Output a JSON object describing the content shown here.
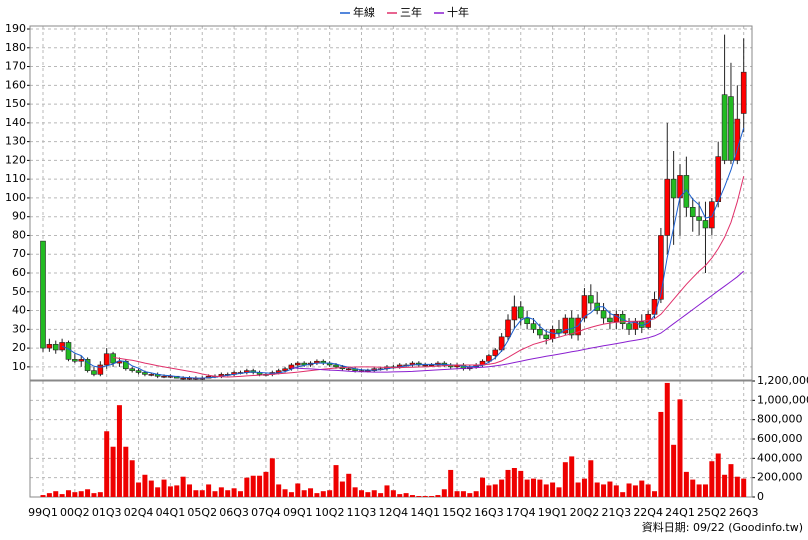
{
  "chart_data": {
    "type": "candlestick",
    "legend_position": "top",
    "note": "資料日期: 09/22 (Goodinfo.tw)",
    "categories": [
      "99Q1",
      null,
      null,
      null,
      null,
      "00Q2",
      null,
      null,
      null,
      null,
      "01Q3",
      null,
      null,
      null,
      null,
      "02Q4",
      null,
      null,
      null,
      null,
      "04Q1",
      null,
      null,
      null,
      null,
      "05Q2",
      null,
      null,
      null,
      null,
      "06Q3",
      null,
      null,
      null,
      null,
      "07Q4",
      null,
      null,
      null,
      null,
      "09Q1",
      null,
      null,
      null,
      null,
      "10Q2",
      null,
      null,
      null,
      null,
      "11Q3",
      null,
      null,
      null,
      null,
      "12Q4",
      null,
      null,
      null,
      null,
      "14Q1",
      null,
      null,
      null,
      null,
      "15Q2",
      null,
      null,
      null,
      null,
      "16Q3",
      null,
      null,
      null,
      null,
      "17Q4",
      null,
      null,
      null,
      null,
      "19Q1",
      null,
      null,
      null,
      null,
      "20Q2",
      null,
      null,
      null,
      null,
      "21Q3",
      null,
      null,
      null,
      null,
      "22Q4",
      null,
      null,
      null,
      null,
      "24Q1",
      null,
      null,
      null,
      null,
      "25Q2",
      null,
      null,
      null,
      null,
      "26Q3"
    ],
    "open": [
      77,
      20,
      22,
      19,
      23,
      14,
      13,
      14,
      8,
      6,
      11,
      17,
      12,
      13,
      9,
      8,
      7,
      6,
      6,
      5,
      5,
      5,
      4,
      4,
      4,
      4,
      4,
      5,
      5,
      6,
      6,
      7,
      7,
      8,
      7,
      6,
      6,
      7,
      8,
      9,
      11,
      12,
      11,
      12,
      13,
      12,
      11,
      10,
      9,
      9,
      8,
      8,
      8,
      9,
      9,
      10,
      10,
      11,
      11,
      12,
      11,
      11,
      11,
      12,
      11,
      10,
      11,
      9,
      10,
      11,
      13,
      16,
      19,
      26,
      35,
      42,
      36,
      33,
      30,
      27,
      25,
      30,
      28,
      36,
      27,
      36,
      48,
      44,
      40,
      36,
      34,
      38,
      33,
      30,
      34,
      31,
      38,
      46,
      80,
      110,
      100,
      112,
      95,
      90,
      88,
      84,
      98,
      155,
      154,
      120,
      145
    ],
    "high": [
      77,
      25,
      24,
      25,
      24,
      17,
      16,
      15,
      10,
      13,
      20,
      18,
      15,
      14,
      10,
      9,
      8,
      7,
      7,
      6,
      6,
      5,
      5,
      5,
      5,
      5,
      6,
      6,
      7,
      7,
      8,
      8,
      9,
      9,
      8,
      7,
      8,
      9,
      10,
      12,
      13,
      13,
      13,
      14,
      14,
      13,
      12,
      11,
      10,
      10,
      9,
      9,
      10,
      10,
      11,
      11,
      12,
      12,
      13,
      13,
      12,
      12,
      13,
      13,
      12,
      12,
      12,
      11,
      12,
      14,
      17,
      20,
      28,
      38,
      48,
      45,
      40,
      36,
      33,
      30,
      32,
      35,
      38,
      40,
      38,
      52,
      54,
      50,
      44,
      40,
      40,
      40,
      36,
      36,
      38,
      40,
      50,
      84,
      140,
      125,
      118,
      122,
      100,
      98,
      98,
      100,
      130,
      187,
      172,
      160,
      185
    ],
    "low": [
      18,
      18,
      17,
      18,
      13,
      12,
      10,
      7,
      5,
      5,
      9,
      10,
      10,
      8,
      7,
      6,
      5,
      5,
      4,
      4,
      4,
      4,
      3,
      3,
      3,
      3,
      4,
      4,
      4,
      5,
      5,
      6,
      6,
      6,
      5,
      5,
      5,
      6,
      7,
      8,
      9,
      10,
      10,
      11,
      11,
      10,
      9,
      8,
      8,
      7,
      7,
      7,
      7,
      8,
      8,
      9,
      9,
      10,
      10,
      10,
      10,
      10,
      10,
      10,
      9,
      9,
      8,
      8,
      9,
      10,
      12,
      14,
      18,
      24,
      30,
      32,
      30,
      28,
      25,
      22,
      23,
      26,
      27,
      25,
      24,
      34,
      40,
      38,
      33,
      30,
      30,
      30,
      27,
      27,
      28,
      30,
      36,
      44,
      70,
      75,
      80,
      90,
      82,
      80,
      60,
      80,
      95,
      118,
      118,
      118,
      135
    ],
    "close": [
      20,
      22,
      19,
      23,
      14,
      13,
      14,
      8,
      6,
      11,
      17,
      12,
      13,
      9,
      8,
      7,
      6,
      6,
      5,
      5,
      5,
      4,
      4,
      4,
      4,
      4,
      5,
      5,
      6,
      6,
      7,
      7,
      8,
      7,
      6,
      6,
      7,
      8,
      9,
      11,
      12,
      11,
      12,
      13,
      12,
      11,
      10,
      9,
      9,
      8,
      8,
      8,
      9,
      9,
      10,
      10,
      11,
      11,
      12,
      11,
      11,
      11,
      12,
      11,
      10,
      11,
      9,
      10,
      11,
      13,
      16,
      19,
      26,
      35,
      42,
      36,
      33,
      30,
      27,
      25,
      30,
      28,
      36,
      27,
      36,
      48,
      44,
      40,
      36,
      34,
      38,
      33,
      30,
      34,
      31,
      38,
      46,
      80,
      110,
      100,
      112,
      95,
      90,
      88,
      84,
      98,
      122,
      120,
      120,
      142,
      167
    ],
    "up_color": "#ff0000",
    "down_color": "#22bb22",
    "ylim": [
      3,
      191.6
    ],
    "yticks": [
      10,
      20,
      30,
      40,
      50,
      60,
      70,
      80,
      90,
      100,
      110,
      120,
      130,
      140,
      150,
      160,
      170,
      180,
      190
    ],
    "grid": true,
    "series": [
      {
        "name": "年線",
        "color": "#1a5fd0",
        "values": [
          null,
          null,
          null,
          21,
          19.5,
          17.3,
          16,
          12.3,
          10.3,
          9.8,
          10.5,
          11.5,
          13.3,
          12.8,
          10.5,
          9.3,
          7.5,
          6.8,
          6,
          5.5,
          5.3,
          4.8,
          4.5,
          4.3,
          4,
          4,
          4.3,
          4.5,
          5,
          5.5,
          6,
          6.5,
          7,
          7.3,
          7,
          6.8,
          6.5,
          6.8,
          7.5,
          8.8,
          10,
          10.8,
          11.5,
          12,
          12,
          12,
          11.5,
          10.5,
          9.8,
          9,
          8.5,
          8.3,
          8.3,
          8.5,
          9,
          9.5,
          10,
          10.5,
          11,
          11.3,
          11.3,
          11.3,
          11.3,
          11.3,
          11,
          11,
          10.3,
          10,
          10.3,
          10.8,
          12.5,
          14.8,
          18.5,
          24,
          30.5,
          34.8,
          36.5,
          35.3,
          31.5,
          28.8,
          28,
          27.5,
          29.8,
          30.3,
          31.8,
          36.8,
          38.8,
          42,
          42,
          38.5,
          37,
          35.3,
          33.8,
          33.8,
          32,
          33.3,
          37.3,
          48.8,
          68.5,
          84,
          100.5,
          104.3,
          99.3,
          96.3,
          89.3,
          90,
          98,
          106,
          115,
          126,
          137.3
        ]
      },
      {
        "name": "三年",
        "color": "#e0306a",
        "values": [
          null,
          null,
          null,
          null,
          null,
          null,
          null,
          null,
          null,
          null,
          null,
          15,
          14.5,
          14,
          13.5,
          12.8,
          12,
          11.3,
          10.6,
          10,
          9.4,
          8.8,
          8.2,
          7.6,
          7,
          6.2,
          5.5,
          5,
          4.7,
          4.6,
          4.7,
          4.9,
          5.2,
          5.4,
          5.6,
          5.8,
          6,
          6.3,
          6.6,
          6.9,
          7.2,
          7.6,
          8,
          8.4,
          8.8,
          9.1,
          9.4,
          9.6,
          9.8,
          9.9,
          10,
          10,
          9.9,
          9.8,
          9.7,
          9.6,
          9.6,
          9.7,
          9.8,
          9.9,
          10,
          10.2,
          10.4,
          10.6,
          10.8,
          11,
          11,
          11,
          11,
          11.1,
          11.4,
          12,
          13.2,
          15,
          17,
          19,
          20.5,
          22,
          23,
          24,
          25,
          25.8,
          26.8,
          27.6,
          28.6,
          30,
          31,
          32,
          32.8,
          33.3,
          33.8,
          34,
          34.2,
          34.3,
          34.4,
          34.8,
          35.6,
          38,
          42,
          46,
          50,
          54,
          57.5,
          61,
          64,
          68,
          73,
          79,
          87,
          98,
          111.5
        ]
      },
      {
        "name": "十年",
        "color": "#8a1fd0",
        "values": [
          null,
          null,
          null,
          null,
          null,
          null,
          null,
          null,
          null,
          null,
          null,
          null,
          null,
          null,
          null,
          null,
          null,
          null,
          null,
          null,
          null,
          null,
          null,
          null,
          null,
          null,
          null,
          null,
          null,
          null,
          null,
          null,
          null,
          null,
          null,
          null,
          null,
          null,
          null,
          9.5,
          9.3,
          9.1,
          8.9,
          8.7,
          8.5,
          8.3,
          8.1,
          7.9,
          7.7,
          7.5,
          7.4,
          7.3,
          7.2,
          7.2,
          7.2,
          7.3,
          7.4,
          7.5,
          7.6,
          7.8,
          8,
          8.2,
          8.4,
          8.6,
          8.8,
          9,
          9.2,
          9.4,
          9.6,
          9.8,
          10.1,
          10.5,
          11,
          11.6,
          12.3,
          13,
          13.7,
          14.4,
          15,
          15.6,
          16.2,
          16.8,
          17.4,
          18,
          18.6,
          19.3,
          20,
          20.6,
          21.2,
          21.8,
          22.4,
          23,
          23.6,
          24.2,
          24.8,
          25.5,
          26.5,
          28,
          30.5,
          33,
          35.5,
          38,
          40.5,
          43,
          45.5,
          48,
          50.5,
          53,
          55.5,
          58,
          61
        ]
      }
    ],
    "volume": {
      "color": "#ee0000",
      "ylim": [
        0,
        1200000
      ],
      "yticks": [
        0,
        {
          "value": 200000,
          "label": "200,000"
        },
        {
          "value": 400000,
          "label": "400,000"
        },
        {
          "value": 600000,
          "label": "600,000"
        },
        {
          "value": 800000,
          "label": "800,000"
        },
        {
          "value": 1000000,
          "label": "1,000,000"
        },
        {
          "value": 1200000,
          "label": "1,200,000"
        }
      ],
      "values": [
        20000,
        40000,
        60000,
        30000,
        70000,
        50000,
        60000,
        80000,
        40000,
        50000,
        680000,
        520000,
        950000,
        520000,
        380000,
        150000,
        230000,
        170000,
        100000,
        180000,
        110000,
        120000,
        210000,
        130000,
        70000,
        70000,
        130000,
        60000,
        100000,
        70000,
        90000,
        60000,
        200000,
        220000,
        220000,
        260000,
        400000,
        130000,
        80000,
        50000,
        140000,
        70000,
        90000,
        40000,
        60000,
        70000,
        330000,
        160000,
        240000,
        100000,
        70000,
        50000,
        70000,
        40000,
        120000,
        70000,
        30000,
        40000,
        20000,
        10000,
        10000,
        10000,
        20000,
        80000,
        280000,
        60000,
        60000,
        40000,
        60000,
        200000,
        120000,
        130000,
        180000,
        280000,
        300000,
        270000,
        180000,
        190000,
        180000,
        130000,
        150000,
        100000,
        360000,
        420000,
        150000,
        190000,
        380000,
        150000,
        130000,
        160000,
        120000,
        50000,
        140000,
        120000,
        170000,
        130000,
        60000,
        880000,
        1180000,
        540000,
        1010000,
        260000,
        180000,
        130000,
        130000,
        370000,
        450000,
        230000,
        340000,
        210000,
        190000
      ]
    }
  }
}
